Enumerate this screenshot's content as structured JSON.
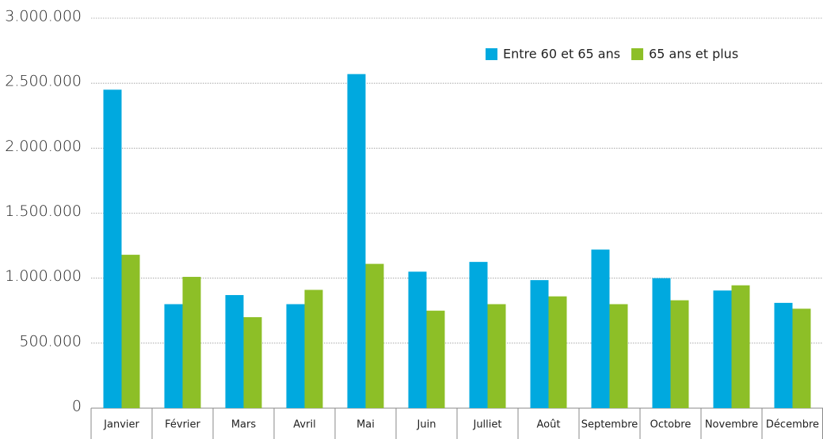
{
  "chart_data": {
    "type": "bar",
    "categories": [
      "Janvier",
      "Février",
      "Mars",
      "Avril",
      "Mai",
      "Juin",
      "Julliet",
      "Août",
      "Septembre",
      "Octobre",
      "Novembre",
      "Décembre"
    ],
    "series": [
      {
        "name": "Entre 60 et 65 ans",
        "color": "#00a9df",
        "values": [
          2450000,
          800000,
          870000,
          800000,
          2570000,
          1050000,
          1125000,
          985000,
          1220000,
          1000000,
          905000,
          810000
        ]
      },
      {
        "name": "65 ans et plus",
        "color": "#8dbf27",
        "values": [
          1180000,
          1010000,
          700000,
          910000,
          1110000,
          750000,
          800000,
          860000,
          800000,
          830000,
          945000,
          765000
        ]
      }
    ],
    "ylim": [
      0,
      3000000
    ],
    "yticks": [
      0,
      {
        "value": 500000,
        "label": "500.000"
      },
      {
        "value": 1000000,
        "label": "1.000.000"
      },
      {
        "value": 1500000,
        "label": "1.500.000"
      },
      {
        "value": 2000000,
        "label": "2.000.000"
      },
      {
        "value": 2500000,
        "label": "2.500.000"
      },
      {
        "value": 3000000,
        "label": "3.000.000"
      }
    ],
    "grid": true,
    "legend": "top-right"
  }
}
